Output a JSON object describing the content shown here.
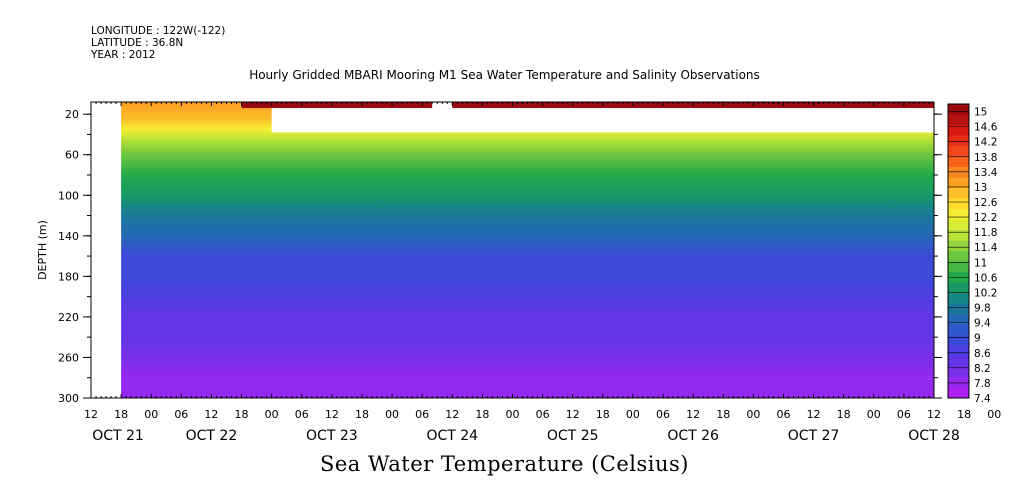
{
  "header": {
    "longitude": "LONGITUDE : 122W(-122)",
    "latitude": "LATITUDE : 36.8N",
    "year": "YEAR : 2012"
  },
  "chart_data": {
    "type": "heatmap",
    "title": "Hourly Gridded MBARI Mooring M1 Sea Water Temperature and Salinity Observations",
    "xlabel": "Sea Water Temperature (Celsius)",
    "ylabel": "DEPTH (m)",
    "ylim": [
      300,
      8
    ],
    "y_ticks": [
      20,
      60,
      100,
      140,
      180,
      220,
      260,
      300
    ],
    "x_hour_ticks": [
      "12",
      "18",
      "00",
      "06",
      "12",
      "18",
      "00",
      "06",
      "12",
      "18",
      "00",
      "06",
      "12",
      "18",
      "00",
      "06",
      "12",
      "18",
      "00",
      "06",
      "12",
      "18",
      "00",
      "06",
      "12",
      "18",
      "00",
      "06",
      "12",
      "18",
      "00",
      "06",
      "12",
      "18",
      "00",
      "06",
      "12"
    ],
    "x_date_labels": [
      "OCT 21",
      "OCT 22",
      "OCT 23",
      "OCT 24",
      "OCT 25",
      "OCT 26",
      "OCT 27",
      "OCT 28"
    ],
    "x_range": [
      "2012-10-21T12:00",
      "2012-10-28T12:00"
    ],
    "data_start": "2012-10-21T18:00",
    "colorbar_labels": [
      "15",
      "14.6",
      "14.2",
      "13.8",
      "13.4",
      "13",
      "12.6",
      "12.2",
      "11.8",
      "11.4",
      "11",
      "10.6",
      "10.2",
      "9.8",
      "9.4",
      "9",
      "8.6",
      "8.2",
      "7.8",
      "7.4"
    ],
    "colorbar_range": [
      7.4,
      15.2
    ],
    "colorbar_colors": [
      "#9b0a10",
      "#b8120f",
      "#d41a12",
      "#e62c14",
      "#f04818",
      "#f6641c",
      "#f98420",
      "#fba224",
      "#fcbf2a",
      "#fdda2e",
      "#f4ed32",
      "#d8ec34",
      "#b8e236",
      "#92d43a",
      "#6cc63e",
      "#44b840",
      "#22aa4a",
      "#169a66",
      "#168a82",
      "#1a789c",
      "#2468b4",
      "#3058cc",
      "#3c4ad8",
      "#4c3ee0",
      "#6236e6",
      "#7a30ea",
      "#9428ee",
      "#ae20f2"
    ],
    "depth_profile": [
      {
        "depth": 10,
        "temp": 13.2
      },
      {
        "depth": 25,
        "temp": 12.9
      },
      {
        "depth": 35,
        "temp": 12.3
      },
      {
        "depth": 45,
        "temp": 11.8
      },
      {
        "depth": 60,
        "temp": 11.2
      },
      {
        "depth": 80,
        "temp": 10.6
      },
      {
        "depth": 100,
        "temp": 10.2
      },
      {
        "depth": 120,
        "temp": 9.9
      },
      {
        "depth": 140,
        "temp": 9.5
      },
      {
        "depth": 160,
        "temp": 9.0
      },
      {
        "depth": 180,
        "temp": 8.8
      },
      {
        "depth": 200,
        "temp": 8.6
      },
      {
        "depth": 220,
        "temp": 8.5
      },
      {
        "depth": 240,
        "temp": 8.3
      },
      {
        "depth": 260,
        "temp": 8.1
      },
      {
        "depth": 280,
        "temp": 7.9
      },
      {
        "depth": 300,
        "temp": 7.7
      }
    ],
    "surface_band": {
      "depth_range": [
        8,
        14
      ],
      "temp": 15.0,
      "time_start": "2012-10-22T18:00"
    },
    "missing_data": [
      {
        "time_start": "2012-10-21T12:00",
        "time_end": "2012-10-21T18:00",
        "depth_range": [
          8,
          300
        ]
      },
      {
        "time_start": "2012-10-23T00:00",
        "time_end": "2012-10-28T12:00",
        "depth_range": [
          14,
          38
        ]
      },
      {
        "time_start": "2012-10-24T08:00",
        "time_end": "2012-10-24T12:00",
        "depth_range": [
          8,
          14
        ]
      }
    ]
  }
}
